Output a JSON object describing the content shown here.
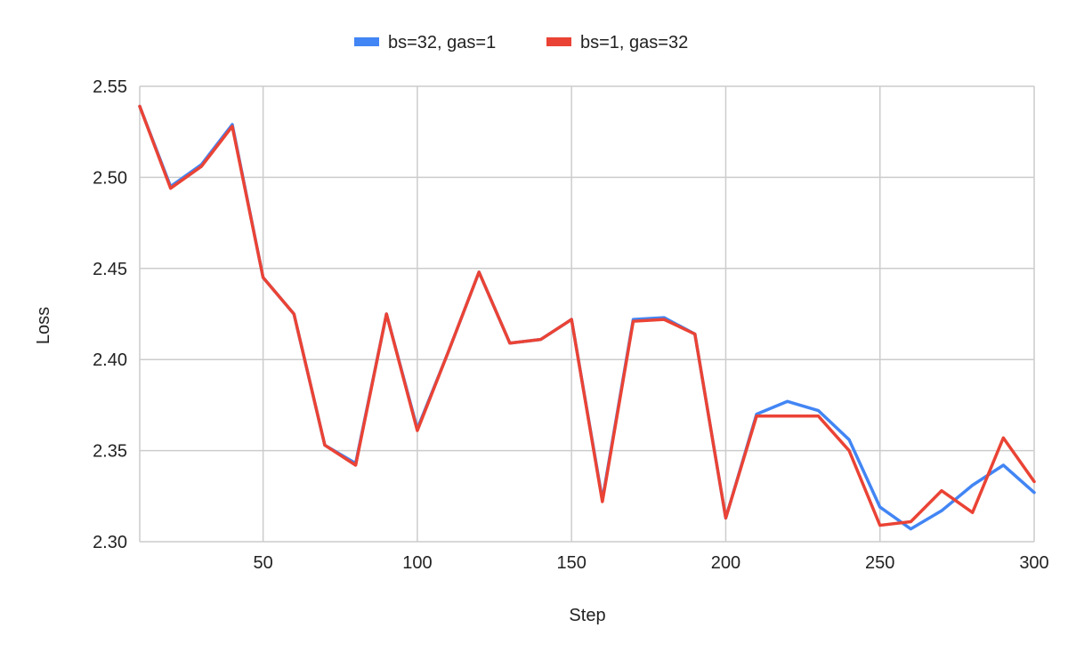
{
  "chart_data": {
    "type": "line",
    "title": "",
    "xlabel": "Step",
    "ylabel": "Loss",
    "xlim": [
      10,
      300
    ],
    "ylim": [
      2.3,
      2.55
    ],
    "x_ticks": [
      50,
      100,
      150,
      200,
      250,
      300
    ],
    "y_ticks": [
      2.3,
      2.35,
      2.4,
      2.45,
      2.5,
      2.55
    ],
    "grid": true,
    "legend_position": "top",
    "x": [
      10,
      20,
      30,
      40,
      50,
      60,
      70,
      80,
      90,
      100,
      110,
      120,
      130,
      140,
      150,
      160,
      170,
      180,
      190,
      200,
      210,
      220,
      230,
      240,
      250,
      260,
      270,
      280,
      290,
      300
    ],
    "series": [
      {
        "name": "bs=32, gas=1",
        "color": "#4285F4",
        "values": [
          2.539,
          2.495,
          2.507,
          2.529,
          2.445,
          2.425,
          2.353,
          2.343,
          2.425,
          2.362,
          2.404,
          2.448,
          2.409,
          2.411,
          2.422,
          2.323,
          2.422,
          2.423,
          2.414,
          2.313,
          2.37,
          2.377,
          2.372,
          2.356,
          2.319,
          2.307,
          2.317,
          2.331,
          2.342,
          2.327
        ]
      },
      {
        "name": "bs=1, gas=32",
        "color": "#EA4335",
        "values": [
          2.539,
          2.494,
          2.506,
          2.528,
          2.445,
          2.425,
          2.353,
          2.342,
          2.425,
          2.361,
          2.404,
          2.448,
          2.409,
          2.411,
          2.422,
          2.322,
          2.421,
          2.422,
          2.414,
          2.313,
          2.369,
          2.369,
          2.369,
          2.35,
          2.309,
          2.311,
          2.328,
          2.316,
          2.357,
          2.333
        ]
      }
    ]
  }
}
